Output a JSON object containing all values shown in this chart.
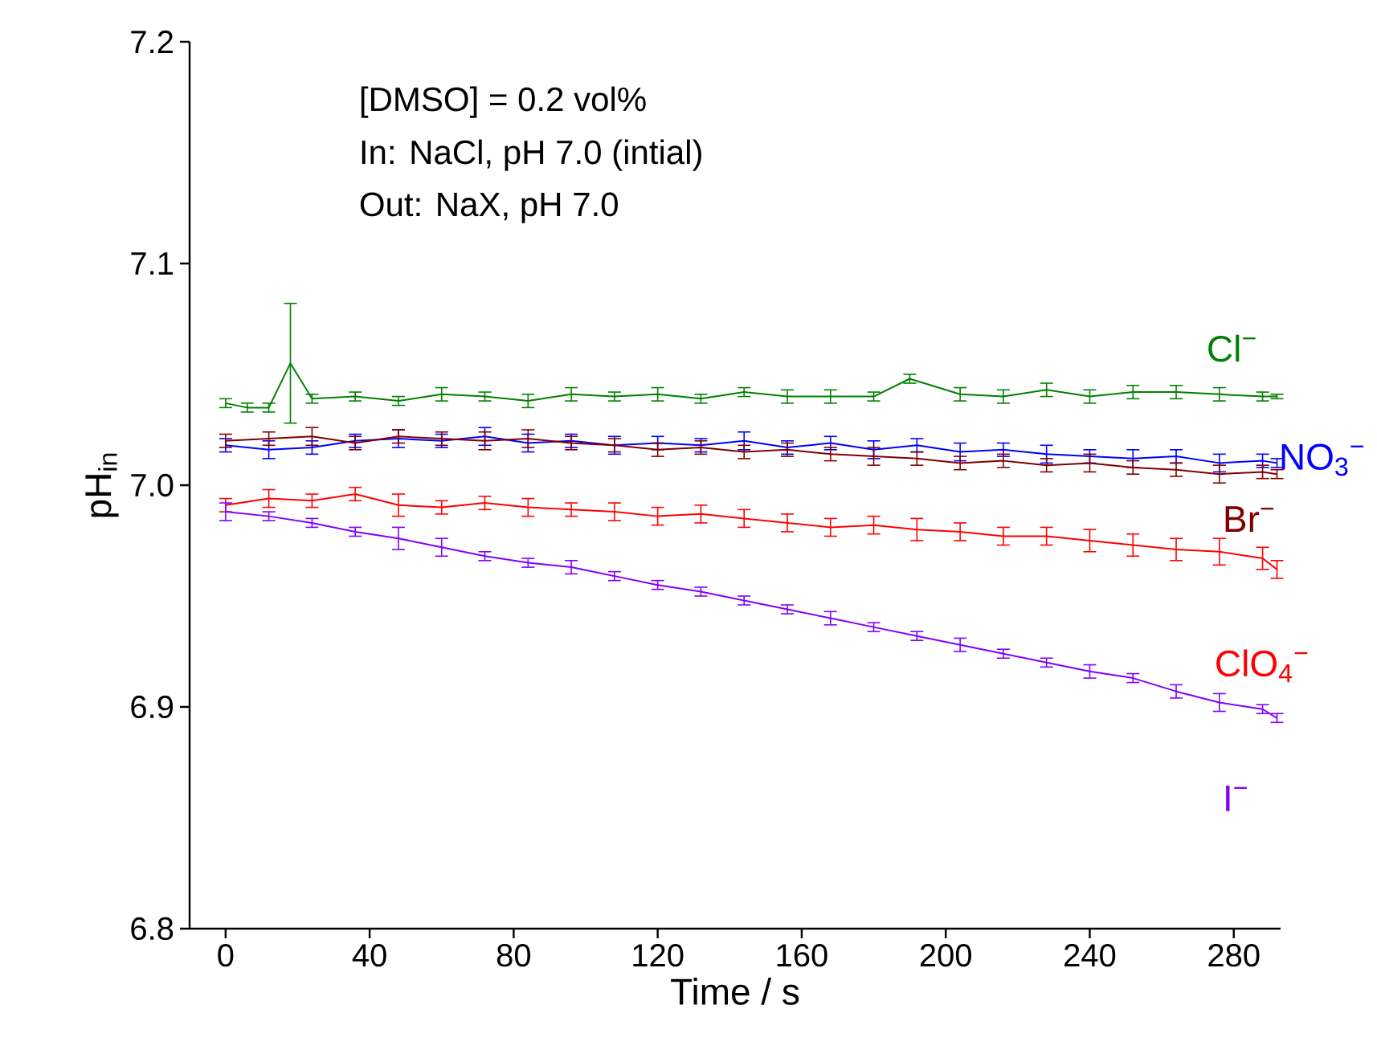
{
  "chart_data": {
    "type": "line",
    "xlabel": "Time / s",
    "ylabel": "pH$_{in}$",
    "xlim": [
      -10,
      293
    ],
    "ylim": [
      6.8,
      7.2
    ],
    "xticks": [
      0,
      40,
      80,
      120,
      160,
      200,
      240,
      280
    ],
    "yticks": [
      {
        "value": 6.8,
        "label": "6.8"
      },
      {
        "value": 6.9,
        "label": "6.9"
      },
      {
        "value": 7.0,
        "label": "7.0"
      },
      {
        "value": 7.1,
        "label": "7.1"
      },
      {
        "value": 7.2,
        "label": "7.2"
      }
    ],
    "marker": "none",
    "line_style": "solid",
    "series": [
      {
        "name": "Cl$^{−}$",
        "color": "#008000",
        "x": [
          0,
          6,
          12,
          18,
          24,
          36,
          48,
          60,
          72,
          84,
          96,
          108,
          120,
          132,
          144,
          156,
          168,
          180,
          190,
          204,
          216,
          228,
          240,
          252,
          264,
          276,
          288,
          292
        ],
        "values": [
          7.037,
          7.035,
          7.035,
          7.055,
          7.039,
          7.04,
          7.038,
          7.041,
          7.04,
          7.038,
          7.041,
          7.04,
          7.041,
          7.039,
          7.042,
          7.04,
          7.04,
          7.04,
          7.048,
          7.041,
          7.04,
          7.043,
          7.04,
          7.042,
          7.042,
          7.041,
          7.04,
          7.04
        ],
        "errors": [
          0.002,
          0.002,
          0.002,
          0.027,
          0.002,
          0.002,
          0.002,
          0.003,
          0.002,
          0.003,
          0.003,
          0.002,
          0.003,
          0.002,
          0.002,
          0.003,
          0.003,
          0.002,
          0.002,
          0.003,
          0.003,
          0.003,
          0.003,
          0.003,
          0.003,
          0.003,
          0.002,
          0.001
        ]
      },
      {
        "name": "NO$_{3}$$^{−}$",
        "color": "#0000ff",
        "x": [
          0,
          12,
          24,
          36,
          48,
          60,
          72,
          84,
          96,
          108,
          120,
          132,
          144,
          156,
          168,
          180,
          192,
          204,
          216,
          228,
          240,
          252,
          264,
          276,
          288,
          292
        ],
        "values": [
          7.018,
          7.016,
          7.017,
          7.02,
          7.021,
          7.02,
          7.022,
          7.019,
          7.02,
          7.018,
          7.019,
          7.018,
          7.02,
          7.017,
          7.019,
          7.016,
          7.018,
          7.015,
          7.016,
          7.014,
          7.013,
          7.012,
          7.013,
          7.01,
          7.011,
          7.01
        ],
        "errors": [
          0.003,
          0.004,
          0.003,
          0.003,
          0.004,
          0.003,
          0.004,
          0.004,
          0.003,
          0.004,
          0.003,
          0.003,
          0.004,
          0.003,
          0.003,
          0.004,
          0.003,
          0.004,
          0.003,
          0.004,
          0.003,
          0.004,
          0.003,
          0.004,
          0.003,
          0.002
        ]
      },
      {
        "name": "Br$^{−}$",
        "color": "#800000",
        "x": [
          0,
          12,
          24,
          36,
          48,
          60,
          72,
          84,
          96,
          108,
          120,
          132,
          144,
          156,
          168,
          180,
          192,
          204,
          216,
          228,
          240,
          252,
          264,
          276,
          288,
          292
        ],
        "values": [
          7.02,
          7.021,
          7.022,
          7.019,
          7.022,
          7.021,
          7.02,
          7.021,
          7.019,
          7.018,
          7.016,
          7.017,
          7.015,
          7.016,
          7.014,
          7.013,
          7.012,
          7.01,
          7.011,
          7.009,
          7.01,
          7.008,
          7.007,
          7.005,
          7.006,
          7.005
        ],
        "errors": [
          0.003,
          0.003,
          0.004,
          0.003,
          0.003,
          0.003,
          0.004,
          0.004,
          0.003,
          0.003,
          0.003,
          0.003,
          0.003,
          0.003,
          0.003,
          0.004,
          0.003,
          0.003,
          0.003,
          0.003,
          0.004,
          0.003,
          0.003,
          0.004,
          0.003,
          0.002
        ]
      },
      {
        "name": "ClO$_{4}$$^{−}$",
        "color": "#ff0000",
        "x": [
          0,
          12,
          24,
          36,
          48,
          60,
          72,
          84,
          96,
          108,
          120,
          132,
          144,
          156,
          168,
          180,
          192,
          204,
          216,
          228,
          240,
          252,
          264,
          276,
          288,
          292
        ],
        "values": [
          6.991,
          6.994,
          6.993,
          6.996,
          6.991,
          6.99,
          6.992,
          6.99,
          6.989,
          6.988,
          6.986,
          6.987,
          6.985,
          6.983,
          6.981,
          6.982,
          6.98,
          6.979,
          6.977,
          6.977,
          6.975,
          6.973,
          6.971,
          6.97,
          6.967,
          6.962
        ],
        "errors": [
          0.003,
          0.004,
          0.003,
          0.003,
          0.005,
          0.003,
          0.003,
          0.004,
          0.003,
          0.004,
          0.004,
          0.004,
          0.004,
          0.004,
          0.004,
          0.004,
          0.005,
          0.004,
          0.004,
          0.004,
          0.005,
          0.005,
          0.005,
          0.006,
          0.005,
          0.004
        ]
      },
      {
        "name": "I$^{−}$",
        "color": "#8000ff",
        "x": [
          0,
          12,
          24,
          36,
          48,
          60,
          72,
          84,
          96,
          108,
          120,
          132,
          144,
          156,
          168,
          180,
          192,
          204,
          216,
          228,
          240,
          252,
          264,
          276,
          288,
          292
        ],
        "values": [
          6.988,
          6.986,
          6.983,
          6.979,
          6.976,
          6.972,
          6.968,
          6.965,
          6.963,
          6.959,
          6.955,
          6.952,
          6.948,
          6.944,
          6.94,
          6.936,
          6.932,
          6.928,
          6.924,
          6.92,
          6.916,
          6.913,
          6.907,
          6.902,
          6.899,
          6.895
        ],
        "errors": [
          0.004,
          0.002,
          0.002,
          0.002,
          0.005,
          0.004,
          0.002,
          0.002,
          0.003,
          0.002,
          0.002,
          0.002,
          0.002,
          0.002,
          0.003,
          0.002,
          0.002,
          0.003,
          0.002,
          0.002,
          0.003,
          0.002,
          0.003,
          0.004,
          0.002,
          0.002
        ]
      }
    ],
    "annotations": [
      "[DMSO] = 0.2 vol%",
      "In: NaCl, pH 7.0 (intial)",
      "Out: NaX, pH 7.0"
    ]
  }
}
